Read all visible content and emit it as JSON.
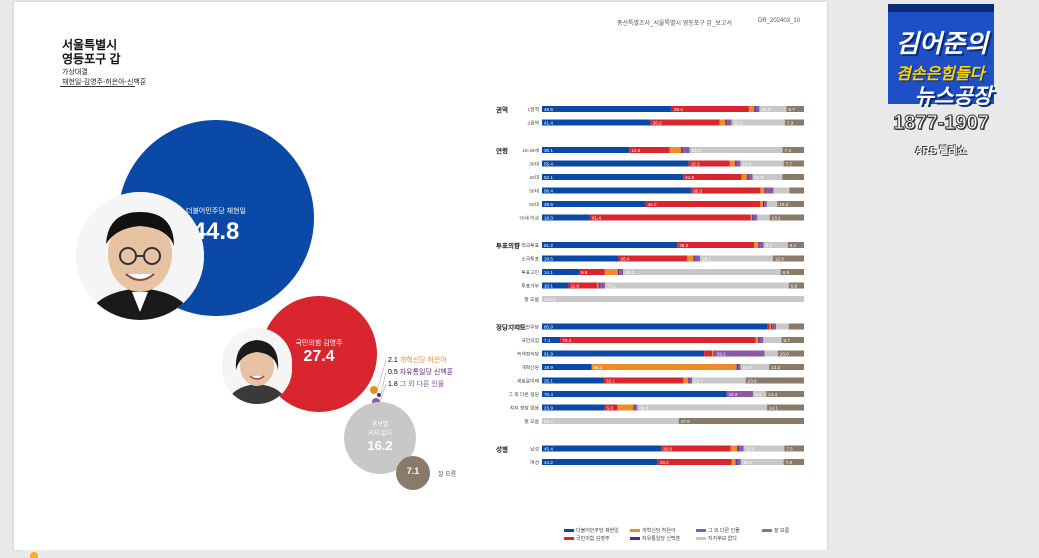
{
  "header": {
    "left_text": "총선특별조사_서울특별시 영등포구 갑_보고서",
    "code": "DR_202403_10"
  },
  "region": {
    "title_line1": "서울특별시",
    "title_line2": "영등포구 갑",
    "sub_line1": "가상대결",
    "sub_line2": "채현일-김영주-허은아-신백훈"
  },
  "colors": {
    "minjoo": "#0a4aa6",
    "ppp": "#d9252e",
    "gaehyuk": "#f08c28",
    "jayu": "#5b2a86",
    "other": "#8a5aa6",
    "none": "#c8c8c8",
    "dontknow": "#8a7a6a"
  },
  "big_results": {
    "minjoo": {
      "label": "더불어민주당 채현일",
      "value": "44.8"
    },
    "ppp": {
      "label": "국민의힘 김영주",
      "value": "27.4"
    },
    "none": {
      "label1": "후보별",
      "label2": "지지 없다",
      "value": "16.2"
    },
    "dontknow": {
      "value": "7.1",
      "label": "잘 모름"
    },
    "minor": [
      {
        "value": "2.1",
        "label": "개혁신당 허은아"
      },
      {
        "value": "0.5",
        "label": "자유통일당 신백훈"
      },
      {
        "value": "1.8",
        "label": "그 외 다른 인물"
      }
    ]
  },
  "chart_data": {
    "type": "bar",
    "orientation": "horizontal",
    "stacked": true,
    "normalized_to": 100,
    "series_order": [
      "더불어민주당 채현일",
      "국민의힘 김영주",
      "개혁신당 허은아",
      "자유통일당 신백훈",
      "그 외 다른 인물",
      "지지후보 없다",
      "잘 모름"
    ],
    "groups": [
      {
        "label": "권역",
        "rows": [
          {
            "label": "1권역",
            "values": [
              49.5,
              29.4,
              2.0,
              0.5,
              1.5,
              10.3,
              6.7
            ]
          },
          {
            "label": "2권역",
            "values": [
              41.4,
              26.2,
              2.2,
              0.5,
              2.0,
              20.2,
              7.3
            ]
          }
        ]
      },
      {
        "label": "연령",
        "rows": [
          {
            "label": "18-29세",
            "values": [
              30.1,
              13.9,
              4.0,
              0.5,
              2.5,
              32.0,
              7.4
            ]
          },
          {
            "label": "30대",
            "values": [
              55.4,
              15.5,
              2.0,
              0.5,
              1.5,
              16.3,
              7.7
            ]
          },
          {
            "label": "40대",
            "values": [
              52.1,
              21.6,
              2.0,
              0.5,
              1.5,
              11.0,
              8.0
            ]
          },
          {
            "label": "50대",
            "values": [
              56.4,
              26.3,
              1.5,
              0.5,
              3.0,
              6.0,
              5.5
            ]
          },
          {
            "label": "60대",
            "values": [
              39.9,
              44.2,
              1.0,
              0.5,
              1.0,
              4.0,
              10.3
            ]
          },
          {
            "label": "70세 이상",
            "values": [
              18.3,
              61.4,
              0.5,
              0.5,
              1.5,
              4.7,
              13.1
            ]
          }
        ]
      },
      {
        "label": "투표의향",
        "rows": [
          {
            "label": "적극투표",
            "values": [
              51.2,
              29.2,
              1.5,
              0.5,
              1.5,
              9.2,
              6.1
            ]
          },
          {
            "label": "소극투표",
            "values": [
              29.5,
              26.4,
              2.5,
              0.5,
              2.0,
              28.1,
              12.0
            ]
          },
          {
            "label": "투표고민",
            "values": [
              14.1,
              9.9,
              5.0,
              0.5,
              1.5,
              60.1,
              8.9
            ]
          },
          {
            "label": "투표거부",
            "values": [
              10.1,
              11.0,
              0.5,
              0.5,
              2.0,
              70.1,
              5.8
            ]
          },
          {
            "label": "잘 모름",
            "values": [
              0,
              0,
              0,
              0,
              0,
              100.0,
              0
            ]
          }
        ]
      },
      {
        "label": "정당지지도",
        "rows": [
          {
            "label": "더불어민주당",
            "values": [
              85.9,
              1.0,
              0.5,
              0.5,
              1.5,
              4.8,
              5.8
            ]
          },
          {
            "label": "국민의힘",
            "values": [
              7.1,
              75.3,
              1.0,
              0.5,
              1.5,
              7.0,
              8.7
            ]
          },
          {
            "label": "녹색정의당",
            "values": [
              61.9,
              3.0,
              0.5,
              0.5,
              19.1,
              5.0,
              10.0
            ]
          },
          {
            "label": "개혁신당",
            "values": [
              18.9,
              0.0,
              55.4,
              0.5,
              1.0,
              10.9,
              13.3
            ]
          },
          {
            "label": "새로운미래",
            "values": [
              25.1,
              32.1,
              2.0,
              0.5,
              1.0,
              21.7,
              23.6
            ]
          },
          {
            "label": "그 외 다른 정당",
            "values": [
              70.4,
              0,
              0,
              0,
              10.2,
              5.0,
              14.4
            ]
          },
          {
            "label": "지지 정당 없음",
            "values": [
              23.9,
              5.0,
              6.0,
              0.5,
              1.0,
              49.5,
              14.1
            ]
          },
          {
            "label": "잘 모름",
            "values": [
              0,
              0,
              0,
              0,
              0,
              52.2,
              47.8
            ]
          }
        ]
      },
      {
        "label": "성별",
        "rows": [
          {
            "label": "남성",
            "values": [
              45.4,
              26.6,
              2.5,
              0.5,
              2.0,
              15.5,
              7.5
            ]
          },
          {
            "label": "여성",
            "values": [
              44.2,
              28.2,
              1.5,
              0.5,
              1.5,
              16.3,
              7.8
            ]
          }
        ]
      }
    ],
    "shown_labels": {
      "1권역": [
        "49.5",
        "29.4",
        "",
        "",
        "",
        "10.3",
        "6.7"
      ],
      "2권역": [
        "41.4",
        "26.2",
        "",
        "",
        "",
        "20.2",
        "7.3"
      ],
      "18-29세": [
        "30.1",
        "13.9",
        "",
        "",
        "",
        "32.0",
        "7.4"
      ],
      "30대": [
        "55.4",
        "15.5",
        "",
        "",
        "",
        "16.3",
        "7.7"
      ],
      "40대": [
        "52.1",
        "21.6",
        "",
        "",
        "",
        "11.0",
        ""
      ],
      "50대": [
        "56.4",
        "26.3",
        "",
        "",
        "",
        "",
        ""
      ],
      "60대": [
        "39.9",
        "44.2",
        "",
        "",
        "",
        "",
        "10.3"
      ],
      "70세 이상": [
        "18.3",
        "61.4",
        "",
        "",
        "",
        "",
        "13.1"
      ],
      "적극투표": [
        "51.2",
        "29.2",
        "",
        "",
        "",
        "9.2",
        "6.1"
      ],
      "소극투표": [
        "29.5",
        "26.4",
        "",
        "",
        "",
        "28.1",
        "12.0"
      ],
      "투표고민": [
        "14.1",
        "9.9",
        "",
        "",
        "",
        "60.1",
        "8.9"
      ],
      "투표거부": [
        "10.1",
        "11.0",
        "",
        "",
        "",
        "70.1",
        "5.8"
      ],
      "잘 모름": [
        "",
        "",
        "",
        "",
        "",
        "100.0",
        ""
      ],
      "더불어민주당": [
        "85.9",
        "",
        "",
        "",
        "",
        "",
        ""
      ],
      "국민의힘": [
        "7.1",
        "75.3",
        "",
        "",
        "",
        "",
        "8.7"
      ],
      "녹색정의당": [
        "61.9",
        "",
        "",
        "",
        "19.1",
        "",
        "10.0"
      ],
      "개혁신당": [
        "18.9",
        "",
        "55.4",
        "",
        "",
        "10.9",
        "13.3"
      ],
      "새로운미래": [
        "25.1",
        "32.1",
        "",
        "",
        "",
        "21.7",
        "23.6"
      ],
      "그 외 다른 정당": [
        "70.4",
        "",
        "",
        "",
        "10.2",
        "5.0",
        "14.4"
      ],
      "지지 정당 없음": [
        "23.9",
        "5.0",
        "",
        "",
        "",
        "49.5",
        "14.1"
      ],
      "잘 모름2": [
        "",
        "",
        "",
        "",
        "",
        "52.2",
        "47.8"
      ],
      "남성": [
        "45.4",
        "26.6",
        "",
        "",
        "",
        "15.5",
        "7.5"
      ],
      "여성": [
        "44.2",
        "28.2",
        "",
        "",
        "",
        "16.3",
        "7.8"
      ]
    }
  },
  "legend": [
    "더불어민주당 채현일",
    "국민의힘 김영주",
    "개혁신당 허은아",
    "자유통일당 신백훈",
    "그 외 다른 인물",
    "지지후보 없다",
    "잘 모름"
  ],
  "logo": {
    "line1": "김어준의",
    "line2": "겸손은힘들다",
    "line3": "뉴스공장"
  },
  "phone": "1877-1907",
  "ars": "ARS 텔레쇼"
}
